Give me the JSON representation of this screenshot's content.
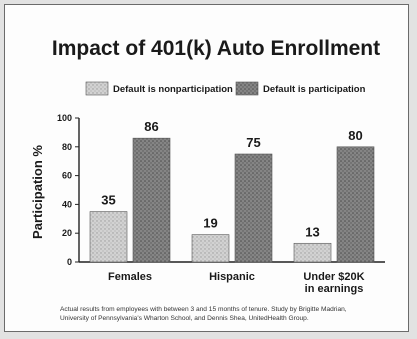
{
  "chart_data": {
    "type": "bar",
    "title": "Impact of 401(k) Auto Enrollment",
    "ylabel": "Participation %",
    "xlabel": "",
    "ylim": [
      0,
      100
    ],
    "yticks": [
      0,
      20,
      40,
      60,
      80,
      100
    ],
    "categories": [
      [
        "Females"
      ],
      [
        "Hispanic"
      ],
      [
        "Under $20K",
        "in earnings"
      ]
    ],
    "series": [
      {
        "name": "Default is nonparticipation",
        "values": [
          35,
          19,
          13
        ],
        "color": "#cfcfcf"
      },
      {
        "name": "Default is participation",
        "values": [
          86,
          75,
          80
        ],
        "color": "#7d7d7d"
      }
    ],
    "legend_position": "top",
    "grid": false
  },
  "footnote": [
    "Actual results from employees with between 3 and 15 months of tenure. Study by Brigitte Madrian,",
    "University of Pennsylvania's Wharton School, and Dennis Shea, UnitedHealth Group."
  ]
}
